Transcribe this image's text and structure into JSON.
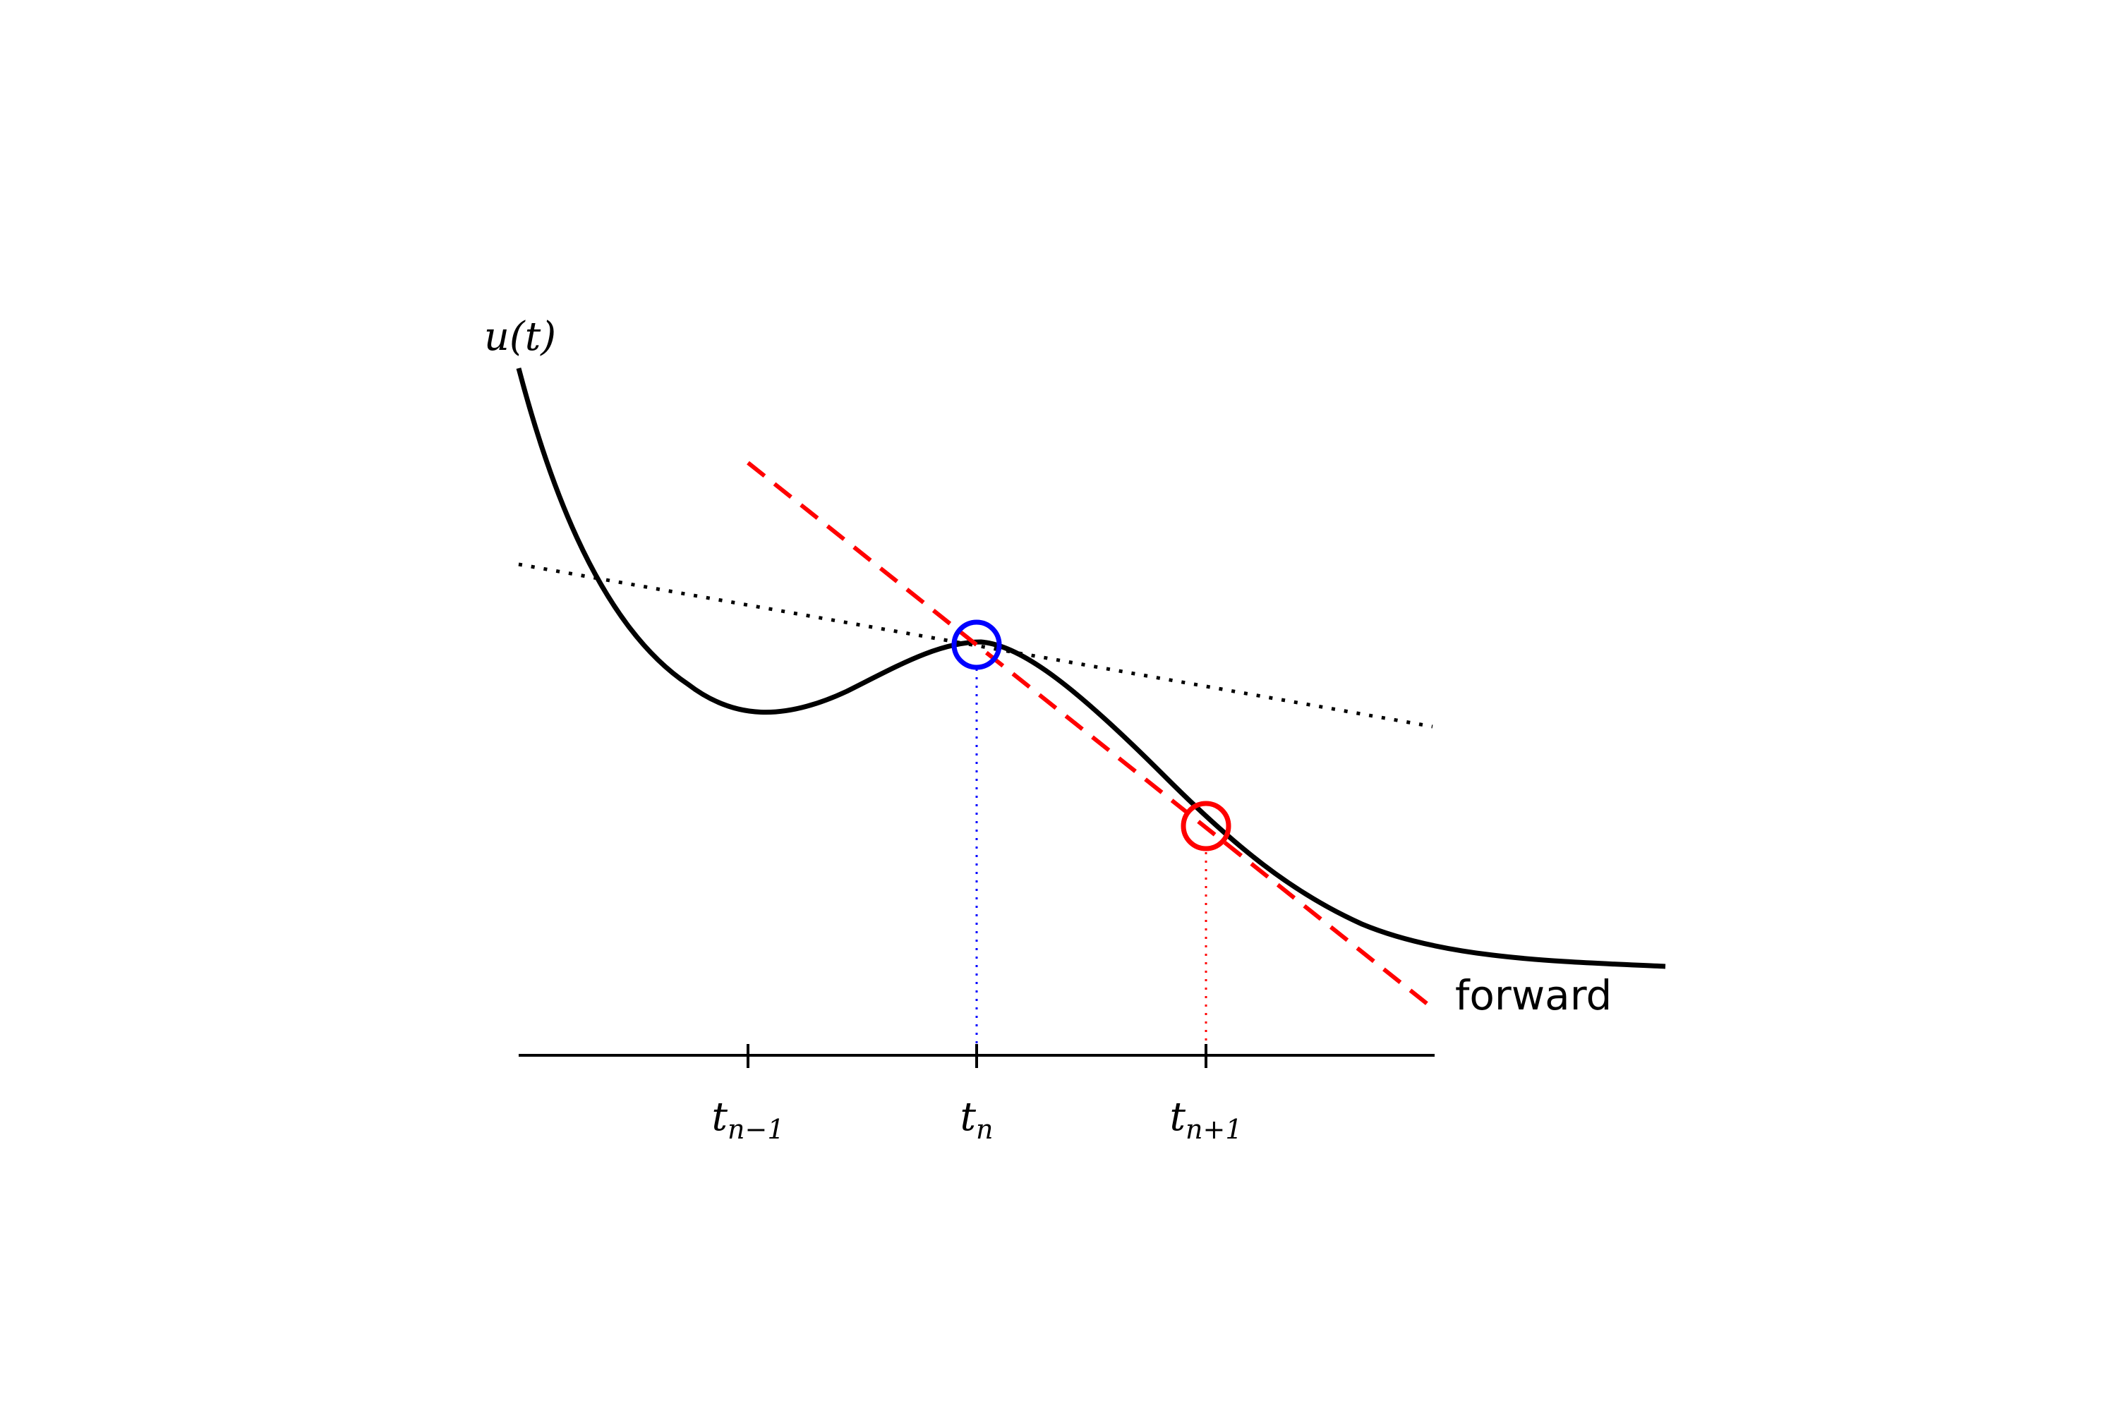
{
  "diagram": {
    "ylabel": "u(t)",
    "ylabel_parts": {
      "base": "u",
      "arg": "(t)"
    },
    "method_label": "forward",
    "ticks": [
      {
        "base": "t",
        "sub": "n−1"
      },
      {
        "base": "t",
        "sub": "n"
      },
      {
        "base": "t",
        "sub": "n+1"
      }
    ],
    "colors": {
      "curve": "#000000",
      "tangent_exact": "#000000",
      "forward_line": "#ff0000",
      "current_point": "#0000ff",
      "next_point": "#ff0000",
      "axis": "#000000"
    }
  }
}
